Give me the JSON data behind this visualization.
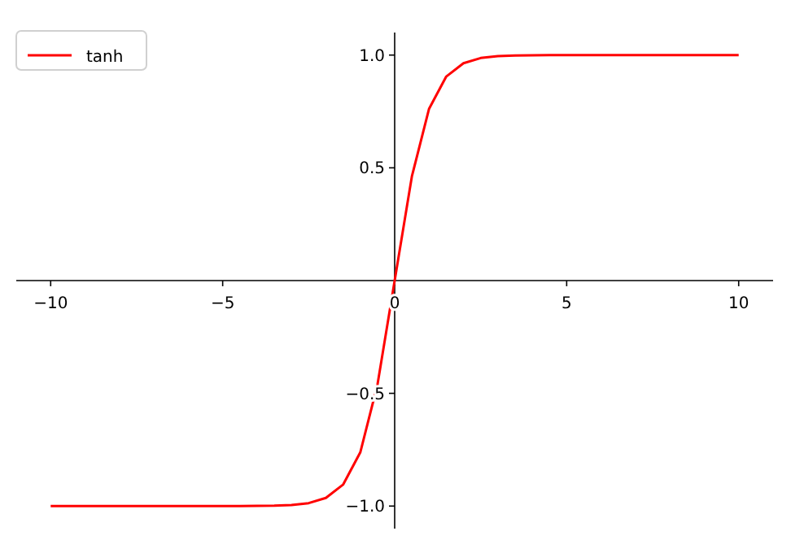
{
  "chart_data": {
    "type": "line",
    "x": [
      -10,
      -9.5,
      -9,
      -8.5,
      -8,
      -7.5,
      -7,
      -6.5,
      -6,
      -5.5,
      -5,
      -4.5,
      -4,
      -3.5,
      -3,
      -2.5,
      -2,
      -1.5,
      -1,
      -0.5,
      0,
      0.5,
      1,
      1.5,
      2,
      2.5,
      3,
      3.5,
      4,
      4.5,
      5,
      5.5,
      6,
      6.5,
      7,
      7.5,
      8,
      8.5,
      9,
      9.5,
      10
    ],
    "series": [
      {
        "name": "tanh",
        "color": "#ff0000",
        "values": [
          -1,
          -1,
          -1,
          -1,
          -1,
          -1,
          -1,
          -1,
          -1,
          -1,
          -1,
          -1,
          -0.999,
          -0.998,
          -0.995,
          -0.987,
          -0.964,
          -0.905,
          -0.762,
          -0.462,
          0,
          0.462,
          0.762,
          0.905,
          0.964,
          0.987,
          0.995,
          0.998,
          0.999,
          1,
          1,
          1,
          1,
          1,
          1,
          1,
          1,
          1,
          1,
          1,
          1
        ]
      }
    ],
    "xlim": [
      -11,
      11
    ],
    "xticks": [
      {
        "value": -10,
        "label": "−10"
      },
      {
        "value": -5,
        "label": "−5"
      },
      0,
      5,
      10
    ],
    "ylim": [
      -1.1,
      1.1
    ],
    "yticks": [
      {
        "value": -1,
        "label": "−1.0"
      },
      {
        "value": -0.5,
        "label": "−0.5"
      },
      {
        "value": 0.5,
        "label": "0.5"
      },
      {
        "value": 1,
        "label": "1.0"
      }
    ],
    "legend": "top left",
    "grid": false,
    "line_style": "solid",
    "marker": "none"
  }
}
